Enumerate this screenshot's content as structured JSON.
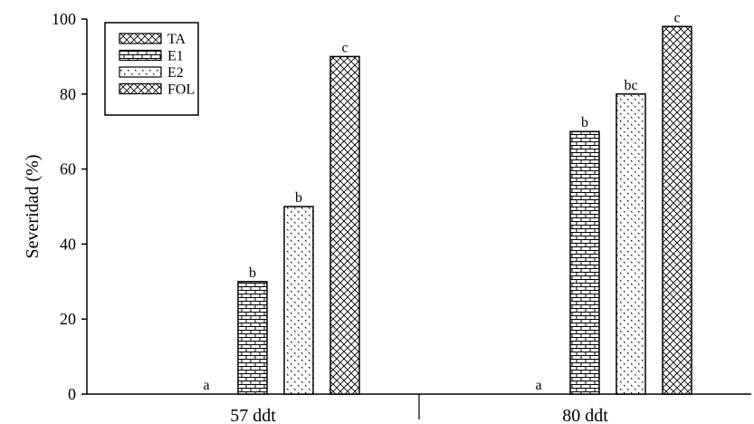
{
  "chart_data": {
    "type": "bar",
    "title": "",
    "xlabel": "",
    "ylabel": "Severidad (%)",
    "ylim": [
      0,
      100
    ],
    "yticks": [
      0,
      20,
      40,
      60,
      80,
      100
    ],
    "grid": false,
    "legend_position": "top-left",
    "categories": [
      "57 ddt",
      "80 ddt"
    ],
    "series": [
      {
        "name": "TA",
        "values": [
          0,
          0
        ],
        "labels": [
          "a",
          "a"
        ],
        "pattern": "cross-hatch"
      },
      {
        "name": "E1",
        "values": [
          30,
          70
        ],
        "labels": [
          "b",
          "b"
        ],
        "pattern": "brick"
      },
      {
        "name": "E2",
        "values": [
          50,
          80
        ],
        "labels": [
          "b",
          "bc"
        ],
        "pattern": "dots"
      },
      {
        "name": "FOL",
        "values": [
          90,
          98
        ],
        "labels": [
          "c",
          "c"
        ],
        "pattern": "diagonal-cross"
      }
    ]
  }
}
